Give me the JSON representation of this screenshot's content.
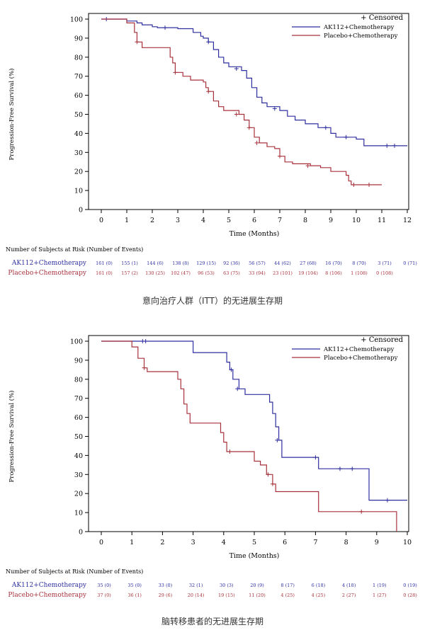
{
  "colors": {
    "ak112": "#2f2fa0",
    "placebo": "#a8323c",
    "axis": "#000000"
  },
  "chart_data": [
    {
      "type": "line",
      "caption": "意向治疗人群（ITT）的无进展生存期",
      "xlabel": "Time (Months)",
      "ylabel": "Progression-Free Survival (%)",
      "xlim": [
        0,
        12
      ],
      "ylim": [
        0,
        100
      ],
      "xticks": [
        0,
        1,
        2,
        3,
        4,
        5,
        6,
        7,
        8,
        9,
        10,
        11,
        12
      ],
      "yticks": [
        0,
        10,
        20,
        30,
        40,
        50,
        60,
        70,
        80,
        90,
        100
      ],
      "grid": false,
      "legend_position": "top-right",
      "legend_title": "+ Censored",
      "series": [
        {
          "name": "AK112+Chemotherapy",
          "color": "#2f2fa0",
          "points": [
            [
              0,
              100
            ],
            [
              0.8,
              100
            ],
            [
              1.0,
              99
            ],
            [
              1.4,
              98
            ],
            [
              1.6,
              97
            ],
            [
              2.0,
              96
            ],
            [
              2.2,
              95.5
            ],
            [
              2.6,
              95.5
            ],
            [
              3.0,
              95
            ],
            [
              3.6,
              93
            ],
            [
              3.9,
              91
            ],
            [
              4.0,
              90
            ],
            [
              4.2,
              88
            ],
            [
              4.4,
              84
            ],
            [
              4.6,
              80
            ],
            [
              4.8,
              77
            ],
            [
              5.0,
              75
            ],
            [
              5.5,
              73
            ],
            [
              5.7,
              69
            ],
            [
              5.9,
              64
            ],
            [
              6.1,
              59
            ],
            [
              6.3,
              56
            ],
            [
              6.5,
              54
            ],
            [
              7.0,
              52
            ],
            [
              7.3,
              49
            ],
            [
              7.6,
              47
            ],
            [
              8.0,
              45
            ],
            [
              8.5,
              43
            ],
            [
              9.0,
              40
            ],
            [
              9.2,
              38
            ],
            [
              10.0,
              37
            ],
            [
              10.3,
              33.5
            ],
            [
              12.0,
              33.5
            ]
          ],
          "censored": [
            [
              0.2,
              100
            ],
            [
              2.5,
              95.5
            ],
            [
              4.2,
              88
            ],
            [
              5.3,
              74
            ],
            [
              6.8,
              53
            ],
            [
              8.8,
              43
            ],
            [
              9.6,
              38
            ],
            [
              11.2,
              33.5
            ],
            [
              11.5,
              33.5
            ]
          ]
        },
        {
          "name": "Placebo+Chemotherapy",
          "color": "#a8323c",
          "points": [
            [
              0,
              100
            ],
            [
              1.0,
              98
            ],
            [
              1.3,
              93
            ],
            [
              1.4,
              88
            ],
            [
              1.6,
              85
            ],
            [
              2.4,
              85
            ],
            [
              2.7,
              80
            ],
            [
              2.8,
              77
            ],
            [
              2.9,
              72
            ],
            [
              3.2,
              70
            ],
            [
              3.5,
              68
            ],
            [
              4.0,
              67
            ],
            [
              4.1,
              64
            ],
            [
              4.2,
              62
            ],
            [
              4.4,
              57
            ],
            [
              4.6,
              54
            ],
            [
              4.8,
              52
            ],
            [
              5.4,
              50
            ],
            [
              5.6,
              47
            ],
            [
              5.8,
              43
            ],
            [
              6.0,
              38
            ],
            [
              6.2,
              35
            ],
            [
              6.5,
              33
            ],
            [
              6.8,
              32
            ],
            [
              7.0,
              28
            ],
            [
              7.2,
              25
            ],
            [
              7.5,
              24
            ],
            [
              8.2,
              23
            ],
            [
              8.6,
              22
            ],
            [
              9.0,
              20
            ],
            [
              9.6,
              18
            ],
            [
              9.7,
              15
            ],
            [
              9.8,
              13
            ],
            [
              11.0,
              13
            ]
          ],
          "censored": [
            [
              1.4,
              88
            ],
            [
              2.9,
              72
            ],
            [
              4.2,
              62
            ],
            [
              5.3,
              50
            ],
            [
              5.8,
              43
            ],
            [
              6.1,
              35
            ],
            [
              7.0,
              28
            ],
            [
              8.1,
              23
            ],
            [
              9.9,
              13
            ],
            [
              10.5,
              13
            ]
          ]
        }
      ],
      "risk_table": {
        "title": "Number of Subjects at Risk (Number of Events)",
        "rows": [
          {
            "label": "AK112+Chemotherapy",
            "color": "#2f2fa0",
            "values": [
              "161 (0)",
              "155 (1)",
              "144 (6)",
              "138 (8)",
              "129 (15)",
              "92 (36)",
              "56 (57)",
              "44 (62)",
              "27 (68)",
              "16 (70)",
              "8 (70)",
              "3 (71)",
              "0 (71)"
            ]
          },
          {
            "label": "Placebo+Chemotherapy",
            "color": "#a8323c",
            "values": [
              "161 (0)",
              "157 (2)",
              "130 (25)",
              "102 (47)",
              "96 (53)",
              "63 (75)",
              "33 (94)",
              "23 (101)",
              "19 (104)",
              "8 (106)",
              "1 (108)",
              "0 (108)",
              ""
            ]
          }
        ]
      }
    },
    {
      "type": "line",
      "caption": "脑转移患者的无进展生存期",
      "xlabel": "Time (Months)",
      "ylabel": "Progression-Free Survival (%)",
      "xlim": [
        0,
        10
      ],
      "ylim": [
        0,
        100
      ],
      "xticks": [
        0,
        1,
        2,
        3,
        4,
        5,
        6,
        7,
        8,
        9,
        10
      ],
      "yticks": [
        0,
        10,
        20,
        30,
        40,
        50,
        60,
        70,
        80,
        90,
        100
      ],
      "grid": false,
      "legend_position": "top-right",
      "legend_title": "+ Censored",
      "series": [
        {
          "name": "AK112+Chemotherapy",
          "color": "#2f2fa0",
          "points": [
            [
              0,
              100
            ],
            [
              2.9,
              100
            ],
            [
              3.0,
              94
            ],
            [
              4.0,
              94
            ],
            [
              4.1,
              89
            ],
            [
              4.2,
              85
            ],
            [
              4.3,
              80
            ],
            [
              4.5,
              75
            ],
            [
              4.7,
              72
            ],
            [
              5.4,
              72
            ],
            [
              5.5,
              68
            ],
            [
              5.6,
              62
            ],
            [
              5.7,
              55
            ],
            [
              5.8,
              48
            ],
            [
              5.9,
              39
            ],
            [
              7.0,
              39
            ],
            [
              7.1,
              33
            ],
            [
              8.7,
              33
            ],
            [
              8.75,
              16.5
            ],
            [
              10,
              16.5
            ]
          ],
          "censored": [
            [
              1.35,
              100
            ],
            [
              1.45,
              100
            ],
            [
              4.25,
              85
            ],
            [
              4.45,
              75
            ],
            [
              5.75,
              48
            ],
            [
              7.0,
              39
            ],
            [
              7.8,
              33
            ],
            [
              8.2,
              33
            ],
            [
              9.35,
              16.5
            ]
          ]
        },
        {
          "name": "Placebo+Chemotherapy",
          "color": "#a8323c",
          "points": [
            [
              0,
              100
            ],
            [
              1.0,
              97
            ],
            [
              1.2,
              91
            ],
            [
              1.4,
              86
            ],
            [
              1.5,
              84
            ],
            [
              2.4,
              84
            ],
            [
              2.5,
              80
            ],
            [
              2.6,
              75
            ],
            [
              2.7,
              67
            ],
            [
              2.8,
              62
            ],
            [
              2.9,
              57
            ],
            [
              3.8,
              57
            ],
            [
              3.9,
              52
            ],
            [
              4.0,
              47
            ],
            [
              4.1,
              42
            ],
            [
              4.9,
              42
            ],
            [
              5.0,
              37
            ],
            [
              5.2,
              35
            ],
            [
              5.4,
              30
            ],
            [
              5.6,
              25
            ],
            [
              5.7,
              21
            ],
            [
              7.0,
              21
            ],
            [
              7.1,
              10.5
            ],
            [
              9.6,
              10.5
            ],
            [
              9.65,
              0
            ]
          ],
          "censored": [
            [
              1.4,
              86
            ],
            [
              4.2,
              42
            ],
            [
              5.45,
              30
            ],
            [
              5.6,
              25
            ],
            [
              8.5,
              10.5
            ]
          ]
        }
      ],
      "risk_table": {
        "title": "Number of Subjects at Risk (Number of Events)",
        "rows": [
          {
            "label": "AK112+Chemotherapy",
            "color": "#2f2fa0",
            "values": [
              "35 (0)",
              "35 (0)",
              "33 (0)",
              "32 (1)",
              "30 (3)",
              "20 (9)",
              "8 (17)",
              "6 (18)",
              "4 (18)",
              "1 (19)",
              "0 (19)"
            ]
          },
          {
            "label": "Placebo+Chemotherapy",
            "color": "#a8323c",
            "values": [
              "37 (0)",
              "36 (1)",
              "29 (6)",
              "20 (14)",
              "19 (15)",
              "11 (20)",
              "4 (25)",
              "4 (25)",
              "2 (27)",
              "1 (27)",
              "0 (28)"
            ]
          }
        ]
      }
    }
  ]
}
